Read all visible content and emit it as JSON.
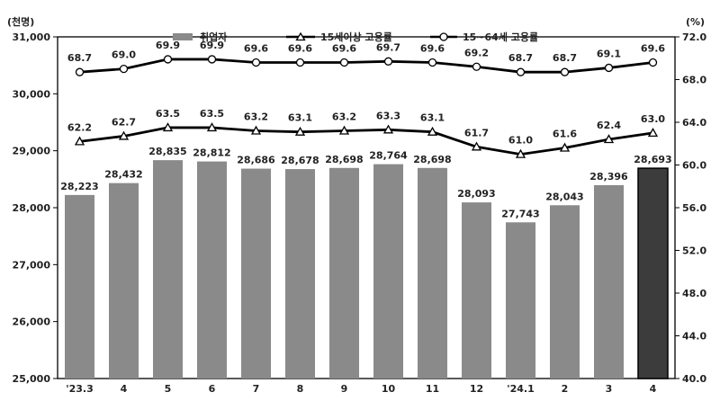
{
  "chart_data": {
    "type": "bar",
    "categories": [
      "'23.3",
      "4",
      "5",
      "6",
      "7",
      "8",
      "9",
      "10",
      "11",
      "12",
      "'24.1",
      "2",
      "3",
      "4"
    ],
    "y_left_label": "(천명)",
    "y_right_label": "(%)",
    "ylim_left": [
      25000,
      31000
    ],
    "ylim_right": [
      40.0,
      72.0
    ],
    "left_ticks": [
      "25,000",
      "26,000",
      "27,000",
      "28,000",
      "29,000",
      "30,000",
      "31,000"
    ],
    "left_tick_values": [
      25000,
      26000,
      27000,
      28000,
      29000,
      30000,
      31000
    ],
    "right_ticks": [
      "40.0",
      "44.0",
      "48.0",
      "52.0",
      "56.0",
      "60.0",
      "64.0",
      "68.0",
      "72.0"
    ],
    "right_tick_values": [
      40,
      44,
      48,
      52,
      56,
      60,
      64,
      68,
      72
    ],
    "highlight_last_bar": true,
    "series": [
      {
        "name": "취업자",
        "kind": "bar",
        "axis": "left",
        "color": "#8a8a8a",
        "highlight_color": "#3c3c3c",
        "values": [
          28223,
          28432,
          28835,
          28812,
          28686,
          28678,
          28698,
          28764,
          28698,
          28093,
          27743,
          28043,
          28396,
          28693
        ],
        "labels": [
          "28,223",
          "28,432",
          "28,835",
          "28,812",
          "28,686",
          "28,678",
          "28,698",
          "28,764",
          "28,698",
          "28,093",
          "27,743",
          "28,043",
          "28,396",
          "28,693"
        ]
      },
      {
        "name": "15세이상 고용률",
        "kind": "line",
        "axis": "right",
        "marker": "triangle",
        "color": "#000000",
        "values": [
          62.2,
          62.7,
          63.5,
          63.5,
          63.2,
          63.1,
          63.2,
          63.3,
          63.1,
          61.7,
          61.0,
          61.6,
          62.4,
          63.0
        ],
        "labels": [
          "62.2",
          "62.7",
          "63.5",
          "63.5",
          "63.2",
          "63.1",
          "63.2",
          "63.3",
          "63.1",
          "61.7",
          "61.0",
          "61.6",
          "62.4",
          "63.0"
        ]
      },
      {
        "name": "15~64세 고용률",
        "kind": "line",
        "axis": "right",
        "marker": "circle",
        "color": "#000000",
        "values": [
          68.7,
          69.0,
          69.9,
          69.9,
          69.6,
          69.6,
          69.6,
          69.7,
          69.6,
          69.2,
          68.7,
          68.7,
          69.1,
          69.6
        ],
        "labels": [
          "68.7",
          "69.0",
          "69.9",
          "69.9",
          "69.6",
          "69.6",
          "69.6",
          "69.7",
          "69.6",
          "69.2",
          "68.7",
          "68.7",
          "69.1",
          "69.6"
        ]
      }
    ],
    "legend_position": "top-center",
    "grid": false
  }
}
